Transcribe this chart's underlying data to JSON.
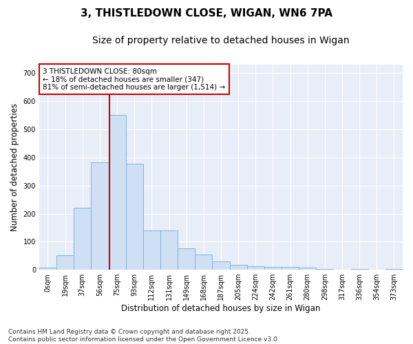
{
  "title_line1": "3, THISTLEDOWN CLOSE, WIGAN, WN6 7PA",
  "title_line2": "Size of property relative to detached houses in Wigan",
  "xlabel": "Distribution of detached houses by size in Wigan",
  "ylabel": "Number of detached properties",
  "bar_labels": [
    "0sqm",
    "19sqm",
    "37sqm",
    "56sqm",
    "75sqm",
    "93sqm",
    "112sqm",
    "131sqm",
    "149sqm",
    "168sqm",
    "187sqm",
    "205sqm",
    "224sqm",
    "242sqm",
    "261sqm",
    "280sqm",
    "298sqm",
    "317sqm",
    "336sqm",
    "354sqm",
    "373sqm"
  ],
  "bar_values": [
    7,
    52,
    220,
    382,
    552,
    377,
    140,
    140,
    77,
    55,
    30,
    17,
    13,
    10,
    10,
    9,
    2,
    0,
    2,
    0,
    3
  ],
  "bar_color": "#cfe0f5",
  "bar_edge_color": "#7fb3d9",
  "vline_color": "#cc0000",
  "vline_x": 3.575,
  "annotation_text": "3 THISTLEDOWN CLOSE: 80sqm\n← 18% of detached houses are smaller (347)\n81% of semi-detached houses are larger (1,514) →",
  "annotation_box_color": "#ffffff",
  "annotation_box_edge": "#cc0000",
  "ylim": [
    0,
    730
  ],
  "yticks": [
    0,
    100,
    200,
    300,
    400,
    500,
    600,
    700
  ],
  "plot_bg_color": "#e8eef8",
  "fig_bg_color": "#ffffff",
  "footer_text": "Contains HM Land Registry data © Crown copyright and database right 2025.\nContains public sector information licensed under the Open Government Licence v3.0.",
  "title_fontsize": 11,
  "subtitle_fontsize": 10,
  "axis_label_fontsize": 8.5,
  "tick_fontsize": 7,
  "annotation_fontsize": 7.5,
  "footer_fontsize": 6.5
}
